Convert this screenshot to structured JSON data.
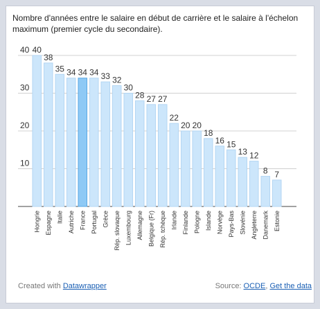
{
  "title": "Nombre d'années entre le salaire en début de carrière et le salaire à l'échelon maximum (premier cycle du secondaire).",
  "footer": {
    "created_with_prefix": "Created with ",
    "created_with_link": "Datawrapper",
    "source_prefix": "Source: ",
    "source_link": "OCDE",
    "separator": ", ",
    "get_data_link": "Get the data"
  },
  "colors": {
    "bar": "#cce6fb",
    "bar_stroke": "#b3d6f3",
    "highlight": "#8ec9f5",
    "highlight_stroke": "#5aa8e3",
    "grid": "#d0d0d0",
    "axis": "#444444"
  },
  "chart_data": {
    "type": "bar",
    "categories": [
      "Hongrie",
      "Espagne",
      "Italie",
      "Autriche",
      "France",
      "Portugal",
      "Grèce",
      "Rép. slovaque",
      "Luxembourg",
      "Allemagne",
      "Belgique (Fr)",
      "Rép. tchèque",
      "Irlande",
      "Finlande",
      "Pologne",
      "Islande",
      "Norvège",
      "Pays-Bas",
      "Slovénie",
      "Angleterre",
      "Danemark",
      "Estonie"
    ],
    "values": [
      40,
      38,
      35,
      34,
      34,
      34,
      33,
      32,
      30,
      28,
      27,
      27,
      22,
      20,
      20,
      18,
      16,
      15,
      13,
      12,
      8,
      7
    ],
    "highlight_category": "France",
    "ylim": [
      0,
      40
    ],
    "yticks": [
      10,
      20,
      30,
      40
    ],
    "grid": true
  }
}
